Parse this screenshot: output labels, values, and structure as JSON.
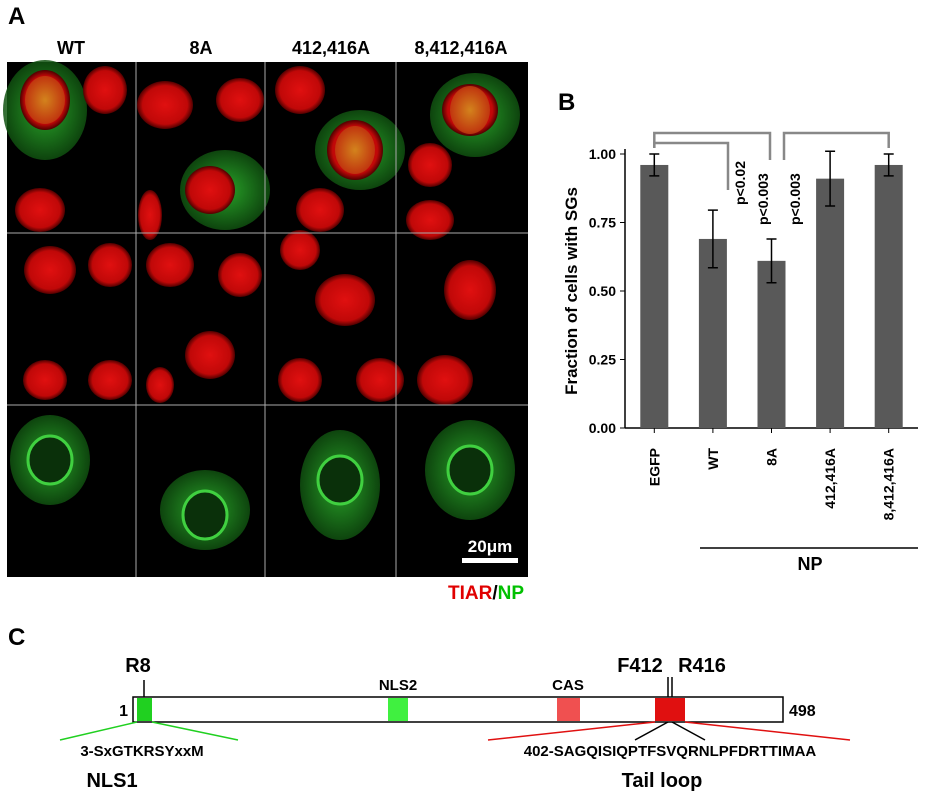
{
  "panel_a": {
    "label": "A",
    "columns": [
      "WT",
      "8A",
      "412,416A",
      "8,412,416A"
    ],
    "scale_bar": "20μm",
    "stain_red": "TIAR",
    "stain_sep": "/",
    "stain_green": "NP"
  },
  "chart_data": {
    "type": "bar",
    "panel_label": "B",
    "ylabel": "Fraction of cells with SGs",
    "categories": [
      "EGFP",
      "WT",
      "8A",
      "412,416A",
      "8,412,416A"
    ],
    "values": [
      0.96,
      0.69,
      0.61,
      0.91,
      0.96
    ],
    "errors": [
      0.04,
      0.105,
      0.08,
      0.1,
      0.04
    ],
    "color": "#595959",
    "ylim": [
      0,
      1
    ],
    "yticks": [
      {
        "value": 0,
        "label": "0.00"
      },
      {
        "value": 0.25,
        "label": "0.25"
      },
      {
        "value": 0.5,
        "label": "0.50"
      },
      {
        "value": 0.75,
        "label": "0.75"
      },
      {
        "value": 1,
        "label": "1.00"
      }
    ],
    "annotations": [
      "p<0.02",
      "p<0.003",
      "p<0.003"
    ],
    "group_label": "NP"
  },
  "panel_c": {
    "label": "C",
    "start": "1",
    "end": "498",
    "r8": "R8",
    "f412": "F412",
    "r416": "R416",
    "nls2": "NLS2",
    "cas": "CAS",
    "nls1_seq": "3-SxGTKRSYxxM",
    "nls1": "NLS1",
    "tail_seq": "402-SAGQISIQPTFSVQRNLPFDRTTIMAA",
    "tail": "Tail loop"
  }
}
